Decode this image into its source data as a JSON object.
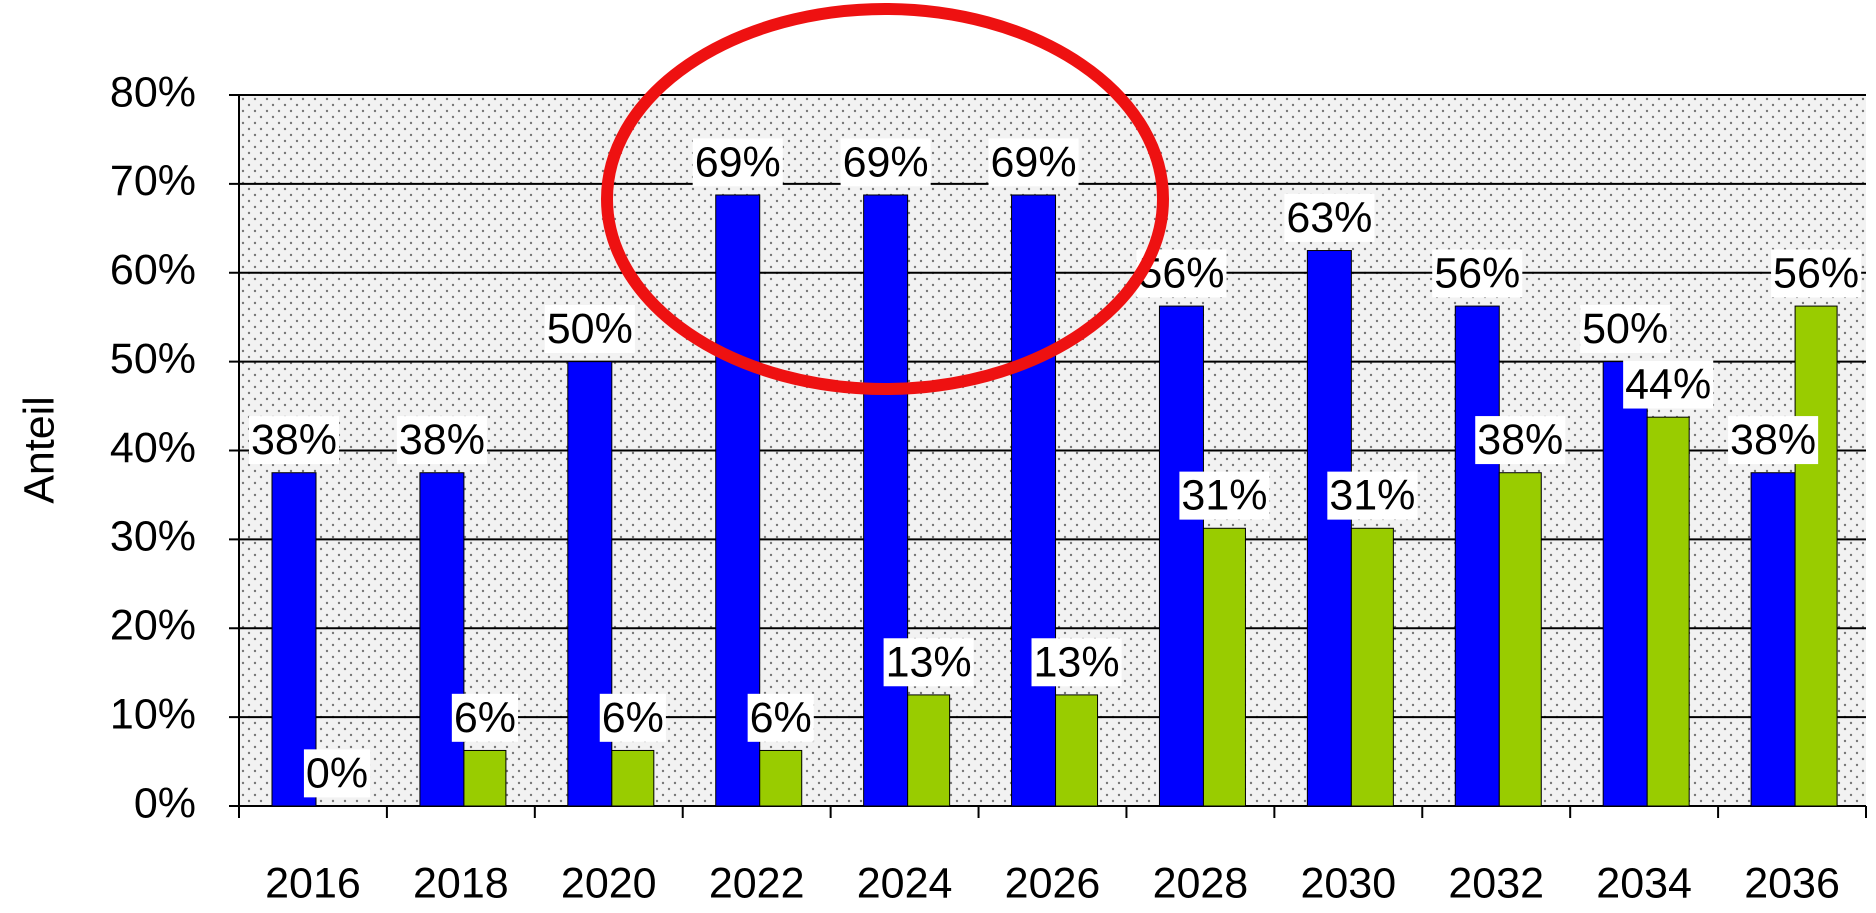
{
  "chart_data": {
    "type": "bar",
    "y_label": "Anteil",
    "categories": [
      "2016",
      "2018",
      "2020",
      "2022",
      "2024",
      "2026",
      "2028",
      "2030",
      "2032",
      "2034",
      "2036"
    ],
    "series": [
      {
        "color": "#0000ff",
        "values": [
          37.5,
          37.5,
          50,
          68.75,
          68.75,
          68.75,
          56.25,
          62.5,
          56.25,
          50,
          37.5
        ],
        "value_labels": [
          "38%",
          "38%",
          "50%",
          "69%",
          "69%",
          "69%",
          "56%",
          "63%",
          "56%",
          "50%",
          "38%"
        ]
      },
      {
        "color": "#99cc00",
        "values": [
          0,
          6.25,
          6.25,
          6.25,
          12.5,
          12.5,
          31.25,
          31.25,
          37.5,
          43.75,
          56.25
        ],
        "value_labels": [
          "0%",
          "6%",
          "6%",
          "6%",
          "13%",
          "13%",
          "31%",
          "31%",
          "38%",
          "44%",
          "56%"
        ]
      }
    ],
    "ylim": [
      0,
      80
    ],
    "yticks": [
      {
        "value": 0,
        "label": "0%"
      },
      {
        "value": 10,
        "label": "10%"
      },
      {
        "value": 20,
        "label": "20%"
      },
      {
        "value": 30,
        "label": "30%"
      },
      {
        "value": 40,
        "label": "40%"
      },
      {
        "value": 50,
        "label": "50%"
      },
      {
        "value": 60,
        "label": "60%"
      },
      {
        "value": 70,
        "label": "70%"
      },
      {
        "value": 80,
        "label": "80%"
      }
    ],
    "grid": true
  }
}
